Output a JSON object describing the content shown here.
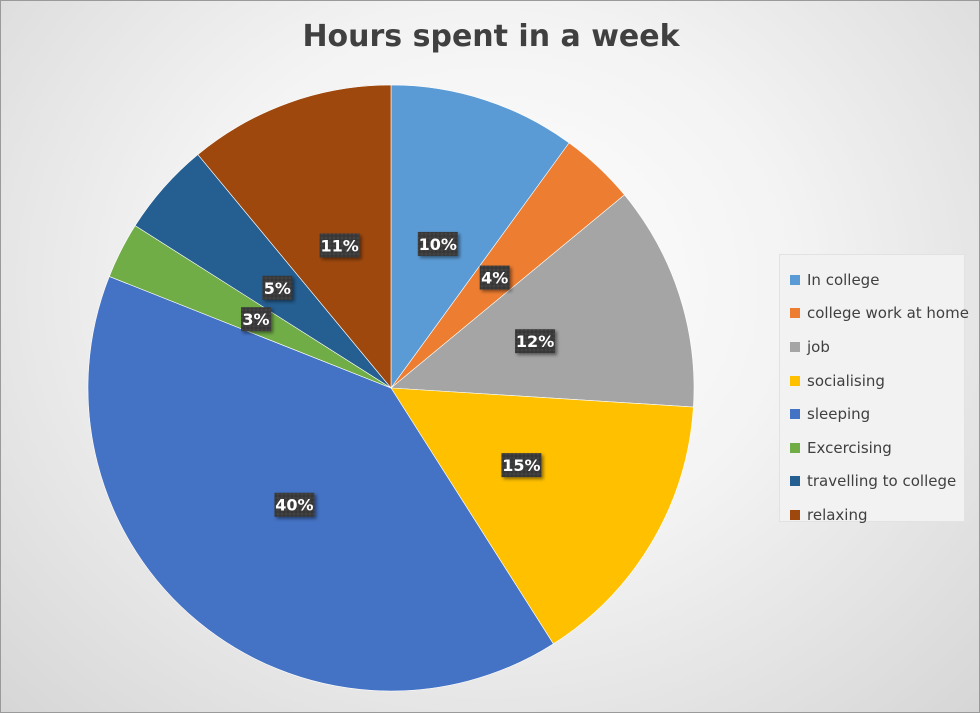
{
  "chart_data": {
    "type": "pie",
    "title": "Hours spent in a week",
    "categories": [
      "In college",
      "college work at home",
      "job",
      "socialising",
      "sleeping",
      "Excercising",
      "travelling to college",
      "relaxing"
    ],
    "values": [
      10,
      4,
      12,
      15,
      40,
      3,
      5,
      11
    ],
    "data_labels": [
      "10%",
      "4%",
      "12%",
      "15%",
      "40%",
      "3%",
      "5%",
      "11%"
    ],
    "colors": [
      "#5b9bd5",
      "#ed7d31",
      "#a5a5a5",
      "#ffc000",
      "#4472c4",
      "#70ad47",
      "#255e91",
      "#9e480e"
    ],
    "legend_position": "right",
    "start_angle_deg": 0,
    "direction": "clockwise"
  }
}
